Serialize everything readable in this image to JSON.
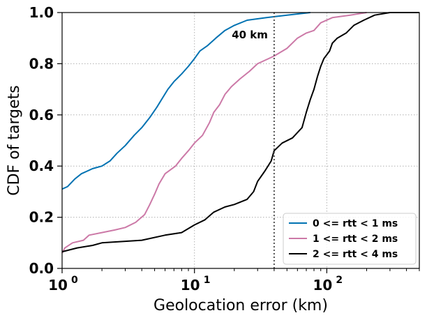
{
  "chart_data": {
    "type": "line",
    "xlabel": "Geolocation error (km)",
    "ylabel": "CDF of targets",
    "xscale": "log",
    "xlim": [
      1,
      500
    ],
    "ylim": [
      0,
      1
    ],
    "x_ticks": [
      1,
      10,
      100
    ],
    "x_tick_labels": [
      "10",
      "10",
      "10"
    ],
    "x_tick_exponents": [
      "0",
      "1",
      "2"
    ],
    "y_ticks": [
      0,
      0.2,
      0.4,
      0.6,
      0.8,
      1.0
    ],
    "y_tick_labels": [
      "0.0",
      "0.2",
      "0.4",
      "0.6",
      "0.8",
      "1.0"
    ],
    "grid": true,
    "legend_position": "lower-right",
    "annotation": {
      "text": "40 km",
      "x": 40
    },
    "series": [
      {
        "name": "0 <= rtt < 1 ms",
        "color": "#0072b2",
        "points": [
          [
            1,
            0.31
          ],
          [
            1.1,
            0.32
          ],
          [
            1.25,
            0.35
          ],
          [
            1.4,
            0.37
          ],
          [
            1.7,
            0.39
          ],
          [
            2.0,
            0.4
          ],
          [
            2.3,
            0.42
          ],
          [
            2.6,
            0.45
          ],
          [
            3.0,
            0.48
          ],
          [
            3.5,
            0.52
          ],
          [
            4.0,
            0.55
          ],
          [
            4.6,
            0.59
          ],
          [
            5.2,
            0.63
          ],
          [
            5.8,
            0.67
          ],
          [
            6.3,
            0.7
          ],
          [
            7.0,
            0.73
          ],
          [
            8.0,
            0.76
          ],
          [
            9.0,
            0.79
          ],
          [
            10.0,
            0.82
          ],
          [
            11.0,
            0.85
          ],
          [
            12.5,
            0.87
          ],
          [
            14.5,
            0.9
          ],
          [
            17.0,
            0.93
          ],
          [
            20.0,
            0.95
          ],
          [
            25.0,
            0.97
          ],
          [
            35.0,
            0.98
          ],
          [
            50.0,
            0.99
          ],
          [
            75.0,
            1.0
          ]
        ]
      },
      {
        "name": "1 <= rtt < 2 ms",
        "color": "#cc79a7",
        "points": [
          [
            1.0,
            0.06
          ],
          [
            1.05,
            0.08
          ],
          [
            1.2,
            0.1
          ],
          [
            1.45,
            0.11
          ],
          [
            1.6,
            0.13
          ],
          [
            2.0,
            0.14
          ],
          [
            2.5,
            0.15
          ],
          [
            3.0,
            0.16
          ],
          [
            3.6,
            0.18
          ],
          [
            4.2,
            0.21
          ],
          [
            4.6,
            0.25
          ],
          [
            5.0,
            0.29
          ],
          [
            5.4,
            0.33
          ],
          [
            6.0,
            0.37
          ],
          [
            7.2,
            0.4
          ],
          [
            8.0,
            0.43
          ],
          [
            9.0,
            0.46
          ],
          [
            10.0,
            0.49
          ],
          [
            11.5,
            0.52
          ],
          [
            13.0,
            0.57
          ],
          [
            14.0,
            0.61
          ],
          [
            15.5,
            0.64
          ],
          [
            17.0,
            0.68
          ],
          [
            19.0,
            0.71
          ],
          [
            22.0,
            0.74
          ],
          [
            26.0,
            0.77
          ],
          [
            30.0,
            0.8
          ],
          [
            40.0,
            0.83
          ],
          [
            50.0,
            0.86
          ],
          [
            60.0,
            0.9
          ],
          [
            70.0,
            0.92
          ],
          [
            80.0,
            0.93
          ],
          [
            90.0,
            0.96
          ],
          [
            110.0,
            0.98
          ],
          [
            150.0,
            0.99
          ],
          [
            200.0,
            1.0
          ]
        ]
      },
      {
        "name": "2 <= rtt < 4 ms",
        "color": "#000000",
        "points": [
          [
            1.0,
            0.065
          ],
          [
            1.3,
            0.08
          ],
          [
            1.7,
            0.09
          ],
          [
            2.0,
            0.1
          ],
          [
            4.0,
            0.11
          ],
          [
            6.0,
            0.13
          ],
          [
            8.0,
            0.14
          ],
          [
            10.0,
            0.17
          ],
          [
            12.0,
            0.19
          ],
          [
            14.0,
            0.22
          ],
          [
            17.0,
            0.24
          ],
          [
            20.0,
            0.25
          ],
          [
            25.0,
            0.27
          ],
          [
            28.0,
            0.3
          ],
          [
            30.0,
            0.34
          ],
          [
            34.0,
            0.38
          ],
          [
            38.0,
            0.42
          ],
          [
            40.0,
            0.46
          ],
          [
            46.0,
            0.49
          ],
          [
            55.0,
            0.51
          ],
          [
            65.0,
            0.55
          ],
          [
            70.0,
            0.61
          ],
          [
            75.0,
            0.66
          ],
          [
            80.0,
            0.7
          ],
          [
            85.0,
            0.75
          ],
          [
            90.0,
            0.79
          ],
          [
            95.0,
            0.82
          ],
          [
            105.0,
            0.85
          ],
          [
            110.0,
            0.88
          ],
          [
            120.0,
            0.9
          ],
          [
            140.0,
            0.92
          ],
          [
            160.0,
            0.95
          ],
          [
            190.0,
            0.97
          ],
          [
            230.0,
            0.99
          ],
          [
            300.0,
            1.0
          ],
          [
            500.0,
            1.0
          ]
        ]
      }
    ]
  }
}
